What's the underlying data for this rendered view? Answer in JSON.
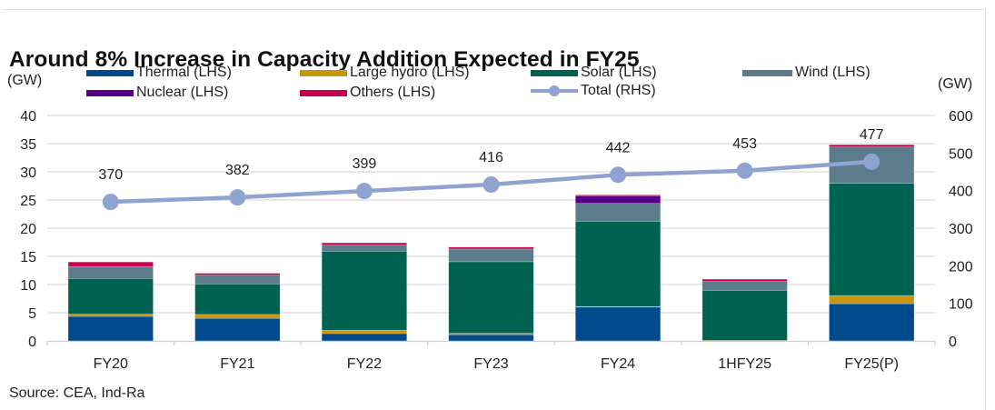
{
  "chart_data": {
    "type": "bar",
    "subtype": "stacked-bar-with-line",
    "title": "Around 8% Increase in Capacity Addition Expected in FY25",
    "ylabel_left": "(GW)",
    "ylabel_right": "(GW)",
    "xlabel": "",
    "categories": [
      "FY20",
      "FY21",
      "FY22",
      "FY23",
      "FY24",
      "1HFY25",
      "FY25(P)"
    ],
    "ylim_left": [
      0,
      40
    ],
    "yticks_left": [
      0,
      5,
      10,
      15,
      20,
      25,
      30,
      35,
      40
    ],
    "ylim_right": [
      0,
      600
    ],
    "yticks_right": [
      0,
      100,
      200,
      300,
      400,
      500,
      600
    ],
    "grid": true,
    "legend_position": "top",
    "series": [
      {
        "name": "Thermal (LHS)",
        "axis": "left",
        "type": "bar",
        "color": "#004a8c",
        "values": [
          4.35,
          4.0,
          1.3,
          1.1,
          6.0,
          0.05,
          6.6
        ]
      },
      {
        "name": "Large hydro (LHS)",
        "axis": "left",
        "type": "bar",
        "color": "#c8960f",
        "values": [
          0.4,
          0.7,
          0.6,
          0.25,
          0.1,
          0.05,
          1.45
        ]
      },
      {
        "name": "Solar (LHS)",
        "axis": "left",
        "type": "bar",
        "color": "#006352",
        "values": [
          6.3,
          5.4,
          14.0,
          12.7,
          15.1,
          8.85,
          19.9
        ]
      },
      {
        "name": "Wind (LHS)",
        "axis": "left",
        "type": "bar",
        "color": "#5c7c8e",
        "values": [
          2.15,
          1.6,
          1.1,
          2.25,
          3.2,
          1.6,
          6.45
        ]
      },
      {
        "name": "Nuclear (LHS)",
        "axis": "left",
        "type": "bar",
        "color": "#560087",
        "values": [
          0,
          0,
          0,
          0,
          1.35,
          0,
          0
        ]
      },
      {
        "name": "Others (LHS)",
        "axis": "left",
        "type": "bar",
        "color": "#c8004b",
        "values": [
          0.8,
          0.3,
          0.4,
          0.35,
          0.15,
          0.4,
          0.4
        ]
      },
      {
        "name": "Total (RHS)",
        "axis": "right",
        "type": "line",
        "color": "#8fa3d1",
        "values": [
          370,
          382,
          399,
          416,
          442,
          453,
          477
        ],
        "data_labels": [
          "370",
          "382",
          "399",
          "416",
          "442",
          "453",
          "477"
        ]
      }
    ],
    "source": "Source: CEA, Ind-Ra"
  },
  "legend": {
    "thermal": "Thermal (LHS)",
    "hydro": "Large hydro (LHS)",
    "solar": "Solar (LHS)",
    "wind": "Wind (LHS)",
    "nuclear": "Nuclear (LHS)",
    "others": "Others (LHS)",
    "total": "Total (RHS)"
  },
  "colors": {
    "thermal": "#004a8c",
    "hydro": "#c8960f",
    "solar": "#006352",
    "wind": "#5c7c8e",
    "nuclear": "#560087",
    "others": "#c8004b",
    "total": "#8fa3d1",
    "grid": "#d9d9d9"
  }
}
